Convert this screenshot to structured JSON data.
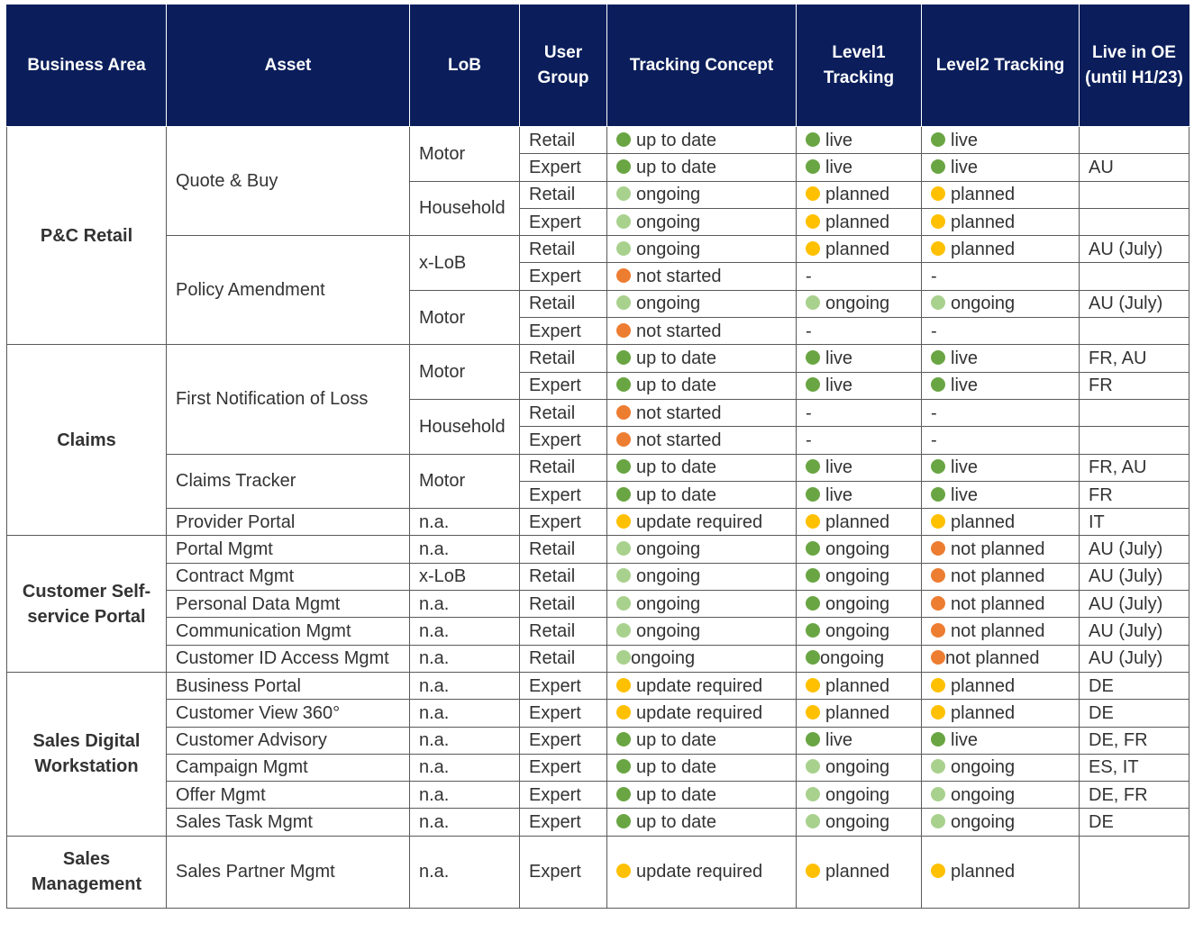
{
  "colors": {
    "header_bg": "#0b1e5b",
    "green": "#6aa543",
    "light_green": "#a9d18e",
    "yellow": "#ffc000",
    "orange": "#ed7d31"
  },
  "headers": [
    "Business Area",
    "Asset",
    "LoB",
    "User Group",
    "Tracking Concept",
    "Level1 Tracking",
    "Level2 Tracking",
    "Live in OE (until H1/23)"
  ],
  "rows": [
    {
      "area": "P&C Retail",
      "area_span": 8,
      "asset": "Quote & Buy",
      "asset_span": 4,
      "lob": "Motor",
      "lob_span": 2,
      "group": "Retail",
      "tc": {
        "t": "up to date",
        "c": "green"
      },
      "l1": {
        "t": "live",
        "c": "green"
      },
      "l2": {
        "t": "live",
        "c": "green"
      },
      "oe": ""
    },
    {
      "group": "Expert",
      "tc": {
        "t": "up to date",
        "c": "green"
      },
      "l1": {
        "t": "live",
        "c": "green"
      },
      "l2": {
        "t": "live",
        "c": "green"
      },
      "oe": "AU"
    },
    {
      "lob": "Household",
      "lob_span": 2,
      "group": "Retail",
      "tc": {
        "t": "ongoing",
        "c": "light_green"
      },
      "l1": {
        "t": "planned",
        "c": "yellow"
      },
      "l2": {
        "t": "planned",
        "c": "yellow"
      },
      "oe": ""
    },
    {
      "group": "Expert",
      "tc": {
        "t": "ongoing",
        "c": "light_green"
      },
      "l1": {
        "t": "planned",
        "c": "yellow"
      },
      "l2": {
        "t": "planned",
        "c": "yellow"
      },
      "oe": ""
    },
    {
      "asset": "Policy Amendment",
      "asset_span": 4,
      "lob": "x-LoB",
      "lob_span": 2,
      "group": "Retail",
      "tc": {
        "t": "ongoing",
        "c": "light_green"
      },
      "l1": {
        "t": "planned",
        "c": "yellow"
      },
      "l2": {
        "t": "planned",
        "c": "yellow"
      },
      "oe": "AU (July)"
    },
    {
      "group": "Expert",
      "tc": {
        "t": "not started",
        "c": "orange"
      },
      "l1": {
        "t": "-",
        "c": ""
      },
      "l2": {
        "t": "-",
        "c": ""
      },
      "oe": ""
    },
    {
      "lob": "Motor",
      "lob_span": 2,
      "group": "Retail",
      "tc": {
        "t": "ongoing",
        "c": "light_green"
      },
      "l1": {
        "t": "ongoing",
        "c": "light_green"
      },
      "l2": {
        "t": "ongoing",
        "c": "light_green"
      },
      "oe": "AU (July)"
    },
    {
      "group": "Expert",
      "tc": {
        "t": "not started",
        "c": "orange"
      },
      "l1": {
        "t": "-",
        "c": ""
      },
      "l2": {
        "t": "-",
        "c": ""
      },
      "oe": ""
    },
    {
      "area": "Claims",
      "area_span": 7,
      "asset": "First Notification of Loss",
      "asset_span": 4,
      "lob": "Motor",
      "lob_span": 2,
      "group": "Retail",
      "tc": {
        "t": "up to date",
        "c": "green"
      },
      "l1": {
        "t": "live",
        "c": "green"
      },
      "l2": {
        "t": "live",
        "c": "green"
      },
      "oe": "FR, AU"
    },
    {
      "group": "Expert",
      "tc": {
        "t": "up to date",
        "c": "green"
      },
      "l1": {
        "t": "live",
        "c": "green"
      },
      "l2": {
        "t": "live",
        "c": "green"
      },
      "oe": "FR"
    },
    {
      "lob": "Household",
      "lob_span": 2,
      "group": "Retail",
      "tc": {
        "t": "not started",
        "c": "orange"
      },
      "l1": {
        "t": "-",
        "c": ""
      },
      "l2": {
        "t": "-",
        "c": ""
      },
      "oe": ""
    },
    {
      "group": "Expert",
      "tc": {
        "t": "not started",
        "c": "orange"
      },
      "l1": {
        "t": "-",
        "c": ""
      },
      "l2": {
        "t": "-",
        "c": ""
      },
      "oe": ""
    },
    {
      "asset": "Claims Tracker",
      "asset_span": 2,
      "lob": "Motor",
      "lob_span": 2,
      "group": "Retail",
      "tc": {
        "t": "up to date",
        "c": "green"
      },
      "l1": {
        "t": "live",
        "c": "green"
      },
      "l2": {
        "t": "live",
        "c": "green"
      },
      "oe": "FR, AU"
    },
    {
      "group": "Expert",
      "tc": {
        "t": "up to date",
        "c": "green"
      },
      "l1": {
        "t": "live",
        "c": "green"
      },
      "l2": {
        "t": "live",
        "c": "green"
      },
      "oe": "FR"
    },
    {
      "asset": "Provider Portal",
      "asset_span": 1,
      "lob": "n.a.",
      "lob_span": 1,
      "group": "Expert",
      "tc": {
        "t": "update required",
        "c": "yellow"
      },
      "l1": {
        "t": "planned",
        "c": "yellow"
      },
      "l2": {
        "t": "planned",
        "c": "yellow"
      },
      "oe": "IT"
    },
    {
      "area": "Customer Self-service Portal",
      "area_span": 5,
      "asset": "Portal Mgmt",
      "asset_span": 1,
      "lob": "n.a.",
      "lob_span": 1,
      "group": "Retail",
      "tc": {
        "t": "ongoing",
        "c": "light_green"
      },
      "l1": {
        "t": "ongoing",
        "c": "green"
      },
      "l2": {
        "t": "not planned",
        "c": "orange"
      },
      "oe": "AU (July)"
    },
    {
      "asset": "Contract Mgmt",
      "asset_span": 1,
      "lob": "x-LoB",
      "lob_span": 1,
      "group": "Retail",
      "tc": {
        "t": "ongoing",
        "c": "light_green"
      },
      "l1": {
        "t": "ongoing",
        "c": "green"
      },
      "l2": {
        "t": "not planned",
        "c": "orange"
      },
      "oe": "AU (July)"
    },
    {
      "asset": "Personal Data Mgmt",
      "asset_span": 1,
      "lob": "n.a.",
      "lob_span": 1,
      "group": "Retail",
      "tc": {
        "t": "ongoing",
        "c": "light_green"
      },
      "l1": {
        "t": "ongoing",
        "c": "green"
      },
      "l2": {
        "t": "not planned",
        "c": "orange"
      },
      "oe": "AU (July)"
    },
    {
      "asset": "Communication Mgmt",
      "asset_span": 1,
      "lob": "n.a.",
      "lob_span": 1,
      "group": "Retail",
      "tc": {
        "t": "ongoing",
        "c": "light_green"
      },
      "l1": {
        "t": "ongoing",
        "c": "green"
      },
      "l2": {
        "t": "not planned",
        "c": "orange"
      },
      "oe": "AU (July)"
    },
    {
      "asset": "Customer ID Access Mgmt",
      "asset_span": 1,
      "lob": "n.a.",
      "lob_span": 1,
      "group": "Retail",
      "tight": true,
      "tc": {
        "t": "ongoing",
        "c": "light_green"
      },
      "l1": {
        "t": "ongoing",
        "c": "green"
      },
      "l2": {
        "t": "not planned",
        "c": "orange"
      },
      "oe": "AU (July)"
    },
    {
      "area": "Sales Digital Workstation",
      "area_span": 6,
      "asset": "Business Portal",
      "asset_span": 1,
      "lob": "n.a.",
      "lob_span": 1,
      "group": "Expert",
      "tc": {
        "t": "update required",
        "c": "yellow"
      },
      "l1": {
        "t": "planned",
        "c": "yellow"
      },
      "l2": {
        "t": "planned",
        "c": "yellow"
      },
      "oe": "DE"
    },
    {
      "asset": "Customer View 360°",
      "asset_span": 1,
      "lob": "n.a.",
      "lob_span": 1,
      "group": "Expert",
      "tc": {
        "t": "update required",
        "c": "yellow"
      },
      "l1": {
        "t": "planned",
        "c": "yellow"
      },
      "l2": {
        "t": "planned",
        "c": "yellow"
      },
      "oe": "DE"
    },
    {
      "asset": "Customer Advisory",
      "asset_span": 1,
      "lob": "n.a.",
      "lob_span": 1,
      "group": "Expert",
      "tc": {
        "t": "up to date",
        "c": "green"
      },
      "l1": {
        "t": "live",
        "c": "green"
      },
      "l2": {
        "t": "live",
        "c": "green"
      },
      "oe": "DE, FR"
    },
    {
      "asset": "Campaign Mgmt",
      "asset_span": 1,
      "lob": "n.a.",
      "lob_span": 1,
      "group": "Expert",
      "tc": {
        "t": "up to date",
        "c": "green"
      },
      "l1": {
        "t": "ongoing",
        "c": "light_green"
      },
      "l2": {
        "t": "ongoing",
        "c": "light_green"
      },
      "oe": "ES, IT"
    },
    {
      "asset": "Offer Mgmt",
      "asset_span": 1,
      "lob": "n.a.",
      "lob_span": 1,
      "group": "Expert",
      "tc": {
        "t": "up to date",
        "c": "green"
      },
      "l1": {
        "t": "ongoing",
        "c": "light_green"
      },
      "l2": {
        "t": "ongoing",
        "c": "light_green"
      },
      "oe": "DE, FR"
    },
    {
      "asset": "Sales Task Mgmt",
      "asset_span": 1,
      "lob": "n.a.",
      "lob_span": 1,
      "group": "Expert",
      "tc": {
        "t": "up to date",
        "c": "green"
      },
      "l1": {
        "t": "ongoing",
        "c": "light_green"
      },
      "l2": {
        "t": "ongoing",
        "c": "light_green"
      },
      "oe": "DE"
    },
    {
      "area": "Sales Management",
      "area_span": 1,
      "asset": "Sales Partner Mgmt",
      "asset_span": 1,
      "lob": "n.a.",
      "lob_span": 1,
      "group": "Expert",
      "tall": true,
      "tc": {
        "t": "update required",
        "c": "yellow"
      },
      "l1": {
        "t": "planned",
        "c": "yellow"
      },
      "l2": {
        "t": "planned",
        "c": "yellow"
      },
      "oe": ""
    }
  ]
}
